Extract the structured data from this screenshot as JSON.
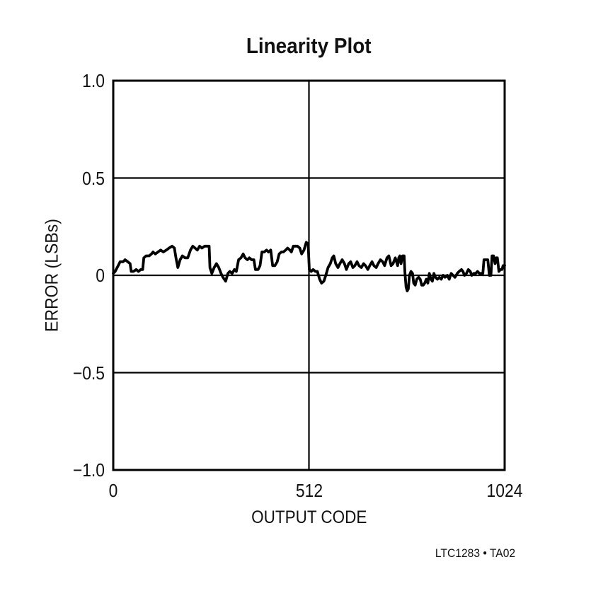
{
  "page": {
    "background": "#ffffff",
    "footer_note": "LTC1283 • TA02"
  },
  "chart_data": {
    "type": "line",
    "title": "Linearity Plot",
    "xlabel": "OUTPUT CODE",
    "ylabel": "ERROR (LSBs)",
    "xlim": [
      0,
      1024
    ],
    "ylim": [
      -1.0,
      1.0
    ],
    "grid": true,
    "legend": "none",
    "axis_color": "#000000",
    "line_color": "#000000",
    "xticks": [
      {
        "value": 0,
        "label": "0"
      },
      {
        "value": 512,
        "label": "512"
      },
      {
        "value": 1024,
        "label": "1024"
      }
    ],
    "yticks": [
      {
        "value": 1.0,
        "label": "1.0"
      },
      {
        "value": 0.5,
        "label": "0.5"
      },
      {
        "value": 0,
        "label": "0"
      },
      {
        "value": -0.5,
        "label": "−0.5"
      },
      {
        "value": -1.0,
        "label": "−1.0"
      }
    ],
    "xgrid": [
      512
    ],
    "ygrid": [
      0.5,
      0,
      -0.5
    ],
    "series": [
      {
        "name": "linearity-error",
        "points": [
          [
            0,
            0.01
          ],
          [
            5,
            0.02
          ],
          [
            13,
            0.05
          ],
          [
            18,
            0.07
          ],
          [
            26,
            0.07
          ],
          [
            31,
            0.08
          ],
          [
            38,
            0.07
          ],
          [
            44,
            0.06
          ],
          [
            47,
            0.02
          ],
          [
            53,
            0.02
          ],
          [
            60,
            0.03
          ],
          [
            66,
            0.02
          ],
          [
            72,
            0.03
          ],
          [
            77,
            0.03
          ],
          [
            80,
            0.09
          ],
          [
            86,
            0.1
          ],
          [
            94,
            0.1
          ],
          [
            100,
            0.11
          ],
          [
            104,
            0.12
          ],
          [
            110,
            0.11
          ],
          [
            117,
            0.12
          ],
          [
            124,
            0.13
          ],
          [
            131,
            0.12
          ],
          [
            139,
            0.13
          ],
          [
            146,
            0.14
          ],
          [
            154,
            0.15
          ],
          [
            160,
            0.14
          ],
          [
            164,
            0.09
          ],
          [
            169,
            0.04
          ],
          [
            175,
            0.08
          ],
          [
            181,
            0.1
          ],
          [
            188,
            0.09
          ],
          [
            195,
            0.09
          ],
          [
            202,
            0.13
          ],
          [
            208,
            0.15
          ],
          [
            214,
            0.14
          ],
          [
            220,
            0.13
          ],
          [
            226,
            0.15
          ],
          [
            232,
            0.14
          ],
          [
            239,
            0.15
          ],
          [
            246,
            0.15
          ],
          [
            251,
            0.15
          ],
          [
            253,
            0.04
          ],
          [
            258,
            0.01
          ],
          [
            264,
            0.04
          ],
          [
            270,
            0.06
          ],
          [
            276,
            0.04
          ],
          [
            282,
            0.01
          ],
          [
            287,
            -0.01
          ],
          [
            294,
            -0.03
          ],
          [
            300,
            0.01
          ],
          [
            305,
            0.02
          ],
          [
            311,
            0.01
          ],
          [
            317,
            0.03
          ],
          [
            322,
            0.02
          ],
          [
            328,
            0.08
          ],
          [
            334,
            0.09
          ],
          [
            340,
            0.11
          ],
          [
            345,
            0.09
          ],
          [
            351,
            0.08
          ],
          [
            356,
            0.09
          ],
          [
            362,
            0.08
          ],
          [
            368,
            0.08
          ],
          [
            372,
            0.03
          ],
          [
            379,
            0.03
          ],
          [
            384,
            0.05
          ],
          [
            389,
            0.12
          ],
          [
            395,
            0.12
          ],
          [
            401,
            0.13
          ],
          [
            406,
            0.12
          ],
          [
            412,
            0.13
          ],
          [
            417,
            0.05
          ],
          [
            423,
            0.05
          ],
          [
            429,
            0.07
          ],
          [
            434,
            0.11
          ],
          [
            440,
            0.12
          ],
          [
            445,
            0.12
          ],
          [
            451,
            0.13
          ],
          [
            456,
            0.14
          ],
          [
            462,
            0.13
          ],
          [
            466,
            0.12
          ],
          [
            471,
            0.15
          ],
          [
            477,
            0.15
          ],
          [
            482,
            0.15
          ],
          [
            488,
            0.14
          ],
          [
            493,
            0.11
          ],
          [
            499,
            0.13
          ],
          [
            505,
            0.17
          ],
          [
            510,
            0.16
          ],
          [
            513,
            0.03
          ],
          [
            518,
            0.02
          ],
          [
            523,
            0.03
          ],
          [
            529,
            0.02
          ],
          [
            534,
            0.02
          ],
          [
            540,
            -0.02
          ],
          [
            545,
            -0.04
          ],
          [
            551,
            -0.03
          ],
          [
            556,
            0.0
          ],
          [
            562,
            0.04
          ],
          [
            568,
            0.06
          ],
          [
            573,
            0.09
          ],
          [
            577,
            0.1
          ],
          [
            582,
            0.06
          ],
          [
            588,
            0.04
          ],
          [
            593,
            0.06
          ],
          [
            599,
            0.08
          ],
          [
            605,
            0.06
          ],
          [
            610,
            0.03
          ],
          [
            616,
            0.06
          ],
          [
            621,
            0.07
          ],
          [
            627,
            0.04
          ],
          [
            632,
            0.05
          ],
          [
            638,
            0.07
          ],
          [
            643,
            0.05
          ],
          [
            649,
            0.04
          ],
          [
            655,
            0.06
          ],
          [
            660,
            0.05
          ],
          [
            666,
            0.03
          ],
          [
            671,
            0.05
          ],
          [
            677,
            0.07
          ],
          [
            682,
            0.05
          ],
          [
            688,
            0.04
          ],
          [
            693,
            0.06
          ],
          [
            699,
            0.08
          ],
          [
            705,
            0.07
          ],
          [
            710,
            0.05
          ],
          [
            716,
            0.09
          ],
          [
            721,
            0.1
          ],
          [
            727,
            0.05
          ],
          [
            732,
            0.06
          ],
          [
            738,
            0.09
          ],
          [
            741,
            0.07
          ],
          [
            744,
            0.05
          ],
          [
            747,
            0.09
          ],
          [
            750,
            0.1
          ],
          [
            753,
            0.06
          ],
          [
            757,
            0.1
          ],
          [
            761,
            0.1
          ],
          [
            763,
            0.02
          ],
          [
            766,
            -0.06
          ],
          [
            769,
            -0.08
          ],
          [
            772,
            -0.07
          ],
          [
            775,
            0.0
          ],
          [
            779,
            0.02
          ],
          [
            783,
            0.01
          ],
          [
            786,
            -0.04
          ],
          [
            790,
            -0.05
          ],
          [
            794,
            -0.02
          ],
          [
            799,
            -0.01
          ],
          [
            803,
            -0.02
          ],
          [
            807,
            -0.05
          ],
          [
            811,
            -0.05
          ],
          [
            815,
            -0.04
          ],
          [
            819,
            -0.02
          ],
          [
            823,
            -0.04
          ],
          [
            827,
            0.01
          ],
          [
            831,
            -0.02
          ],
          [
            835,
            -0.03
          ],
          [
            839,
            0.01
          ],
          [
            843,
            -0.01
          ],
          [
            848,
            -0.02
          ],
          [
            853,
            -0.01
          ],
          [
            858,
            -0.02
          ],
          [
            863,
            0.0
          ],
          [
            868,
            -0.01
          ],
          [
            874,
            0.0
          ],
          [
            879,
            -0.02
          ],
          [
            884,
            0.01
          ],
          [
            889,
            0.0
          ],
          [
            894,
            -0.01
          ],
          [
            900,
            0.01
          ],
          [
            905,
            0.02
          ],
          [
            911,
            0.03
          ],
          [
            915,
            0.02
          ],
          [
            919,
            0.0
          ],
          [
            924,
            0.01
          ],
          [
            929,
            0.03
          ],
          [
            934,
            0.02
          ],
          [
            938,
            0.0
          ],
          [
            943,
            0.01
          ],
          [
            948,
            0.01
          ],
          [
            953,
            0.02
          ],
          [
            958,
            0.01
          ],
          [
            963,
            0.01
          ],
          [
            967,
            0.01
          ],
          [
            970,
            0.08
          ],
          [
            975,
            0.08
          ],
          [
            980,
            0.08
          ],
          [
            984,
            0.0
          ],
          [
            988,
            0.0
          ],
          [
            991,
            0.1
          ],
          [
            995,
            0.1
          ],
          [
            999,
            0.06
          ],
          [
            1002,
            0.09
          ],
          [
            1005,
            0.09
          ],
          [
            1009,
            0.02
          ],
          [
            1013,
            0.03
          ],
          [
            1017,
            0.03
          ],
          [
            1020,
            0.05
          ],
          [
            1024,
            0.05
          ]
        ]
      }
    ]
  }
}
